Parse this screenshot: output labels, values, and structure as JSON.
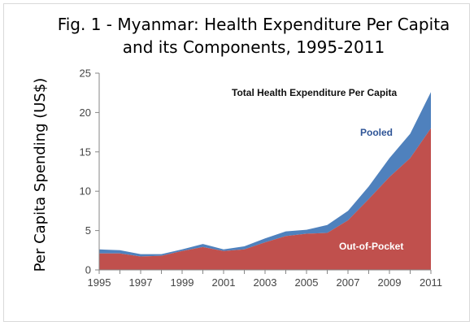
{
  "chart_data": {
    "type": "area",
    "title_lines": [
      "Fig. 1 - Myanmar: Health Expenditure Per Capita",
      "and its Components, 1995-2011"
    ],
    "xlabel": "",
    "ylabel": "Per Capita Spending (US$)",
    "x": [
      1995,
      1996,
      1997,
      1998,
      1999,
      2000,
      2001,
      2002,
      2003,
      2004,
      2005,
      2006,
      2007,
      2008,
      2009,
      2010,
      2011
    ],
    "x_tick_labels": [
      "1995",
      "1997",
      "1999",
      "2001",
      "2003",
      "2005",
      "2007",
      "2009",
      "2011"
    ],
    "ylim": [
      0,
      25
    ],
    "y_ticks": [
      0,
      5,
      10,
      15,
      20,
      25
    ],
    "grid": false,
    "series": [
      {
        "name": "Out-of-Pocket",
        "values": [
          2.1,
          2.1,
          1.7,
          1.8,
          2.4,
          2.9,
          2.4,
          2.6,
          3.5,
          4.3,
          4.6,
          4.7,
          6.3,
          9.0,
          11.8,
          14.2,
          18.0
        ]
      },
      {
        "name": "Pooled",
        "values": [
          0.5,
          0.4,
          0.3,
          0.2,
          0.2,
          0.4,
          0.2,
          0.4,
          0.5,
          0.6,
          0.5,
          1.0,
          1.2,
          1.6,
          2.4,
          3.1,
          4.6
        ]
      }
    ],
    "total_label": "Total Health Expenditure Per Capita",
    "colors": {
      "out_of_pocket": "#c0504d",
      "pooled": "#4f81bd"
    }
  }
}
